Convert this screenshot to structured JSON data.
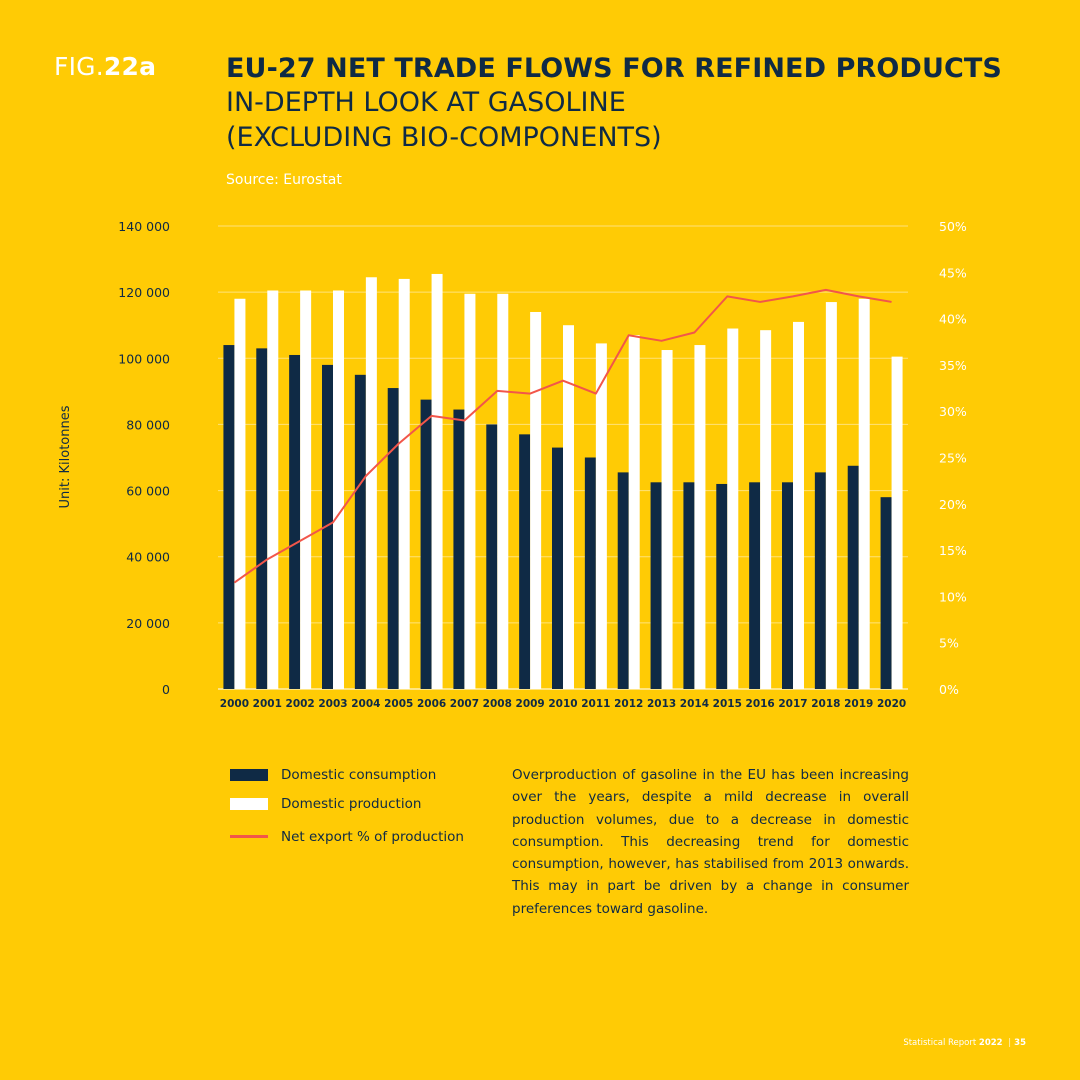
{
  "figure": {
    "prefix": "FIG.",
    "number": "22a"
  },
  "title": {
    "main": "EU-27 NET TRADE FLOWS FOR REFINED PRODUCTS",
    "sub": "IN-DEPTH LOOK AT GASOLINE (EXCLUDING BIO-COMPONENTS)"
  },
  "source": "Source: Eurostat",
  "colors": {
    "background": "#FFCB05",
    "consumption": "#0F2A45",
    "production": "#FFFFFF",
    "export_line": "#F2564A",
    "gridline": "#FFE27A"
  },
  "chart_data": {
    "type": "bar",
    "categories": [
      "2000",
      "2001",
      "2002",
      "2003",
      "2004",
      "2005",
      "2006",
      "2007",
      "2008",
      "2009",
      "2010",
      "2011",
      "2012",
      "2013",
      "2014",
      "2015",
      "2016",
      "2017",
      "2018",
      "2019",
      "2020"
    ],
    "series": [
      {
        "name": "Domestic consumption",
        "type": "bar",
        "axis": "left",
        "values": [
          104000,
          103000,
          101000,
          98000,
          95000,
          91000,
          87500,
          84500,
          80000,
          77000,
          73000,
          70000,
          65500,
          62500,
          62500,
          62000,
          62500,
          62500,
          65500,
          67500,
          58000
        ]
      },
      {
        "name": "Domestic production",
        "type": "bar",
        "axis": "left",
        "values": [
          118000,
          120500,
          120500,
          120500,
          124500,
          124000,
          125500,
          119500,
          119500,
          114000,
          110000,
          104500,
          107000,
          102500,
          104000,
          109000,
          108500,
          111000,
          117000,
          118000,
          100500
        ]
      },
      {
        "name": "Net export % of production",
        "type": "line",
        "axis": "right",
        "values": [
          11.5,
          14,
          16,
          18,
          23,
          26.5,
          29.5,
          29,
          32.2,
          31.9,
          33.3,
          31.9,
          38.2,
          37.6,
          38.5,
          42.4,
          41.8,
          42.4,
          43.1,
          42.4,
          41.8
        ]
      }
    ],
    "ylabel": "Unit: Kilotonnes",
    "y_left_ticks": [
      "0",
      "20 000",
      "40 000",
      "60 000",
      "80 000",
      "100 000",
      "120 000",
      "140 000"
    ],
    "y_right_ticks": [
      "0%",
      "5%",
      "10%",
      "15%",
      "20%",
      "25%",
      "30%",
      "35%",
      "40%",
      "45%",
      "50%"
    ],
    "ylim_left": [
      0,
      140000
    ],
    "ylim_right": [
      0,
      50
    ],
    "grid": true,
    "legend_position": "bottom-left"
  },
  "legend": {
    "items": [
      {
        "label": "Domestic consumption"
      },
      {
        "label": "Domestic production"
      },
      {
        "label": "Net export % of production"
      }
    ]
  },
  "paragraph": "Overproduction of gasoline in the EU has been increasing over the years, despite a mild decrease in overall production volumes, due to a decrease in domestic consumption. This decreasing trend for domestic consumption, however, has stabilised from 2013 onwards. This may in part be driven by a change in consumer preferences toward gasoline.",
  "footer": {
    "report": "Statistical Report",
    "year": "2022",
    "separator": "|",
    "page": "35"
  }
}
